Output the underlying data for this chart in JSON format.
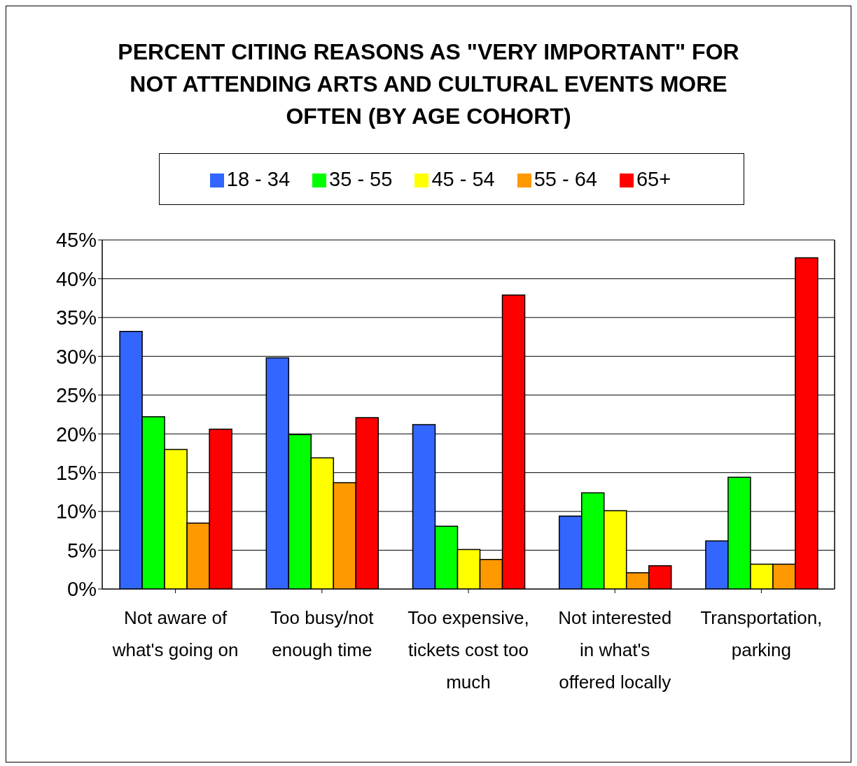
{
  "chart_data": {
    "type": "bar",
    "title": "PERCENT CITING REASONS AS \"VERY IMPORTANT\" FOR NOT ATTENDING ARTS AND CULTURAL EVENTS MORE OFTEN (BY AGE COHORT)",
    "categories": [
      "Not aware of what's going on",
      "Too busy/not enough time",
      "Too expensive, tickets cost too much",
      "Not interested in what's offered locally",
      "Transportation, parking"
    ],
    "series": [
      {
        "name": "18 - 34",
        "color": "#3366ff",
        "values": [
          33.2,
          29.8,
          21.2,
          9.4,
          6.2
        ]
      },
      {
        "name": "35 - 55",
        "color": "#00ff00",
        "values": [
          22.2,
          19.9,
          8.1,
          12.4,
          14.4
        ]
      },
      {
        "name": "45 - 54",
        "color": "#ffff00",
        "values": [
          18.0,
          16.9,
          5.1,
          10.1,
          3.2
        ]
      },
      {
        "name": "55 - 64",
        "color": "#ff9900",
        "values": [
          8.5,
          13.7,
          3.8,
          2.1,
          3.2
        ]
      },
      {
        "name": "65+",
        "color": "#ff0000",
        "values": [
          20.6,
          22.1,
          37.9,
          3.0,
          42.7
        ]
      }
    ],
    "ylim": [
      0,
      45
    ],
    "yticks": [
      {
        "value": 0,
        "label": "0%"
      },
      {
        "value": 5,
        "label": "5%"
      },
      {
        "value": 10,
        "label": "10%"
      },
      {
        "value": 15,
        "label": "15%"
      },
      {
        "value": 20,
        "label": "20%"
      },
      {
        "value": 25,
        "label": "25%"
      },
      {
        "value": 30,
        "label": "30%"
      },
      {
        "value": 35,
        "label": "35%"
      },
      {
        "value": 40,
        "label": "40%"
      },
      {
        "value": 45,
        "label": "45%"
      }
    ],
    "grid": "y",
    "legend": "top"
  }
}
